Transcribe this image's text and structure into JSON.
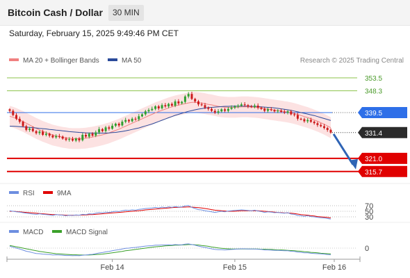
{
  "header": {
    "title": "Bitcoin Cash / Dollar",
    "timeframe": "30 MIN",
    "datetime": "Saturday, February 15, 2025 9:49:46 PM CET"
  },
  "credit": "Research © 2025 Trading Central",
  "colors": {
    "bullish": "#2f9e2f",
    "bearish": "#cc1b1b",
    "ma20": "#f08080",
    "ma50": "#2a4a9a",
    "bollinger_fill": "#fbd3d3",
    "resistance": "#8bc34a",
    "pivot": "#2e6fe8",
    "support": "#e00000",
    "arrow": "#2f64b5",
    "rsi": "#6d8ee0",
    "rsi_ma": "#e00000",
    "macd": "#6d8ee0",
    "macd_signal": "#3aa02a"
  },
  "chart_data": [
    {
      "type": "candlestick",
      "legend": [
        "MA 20 + Bollinger Bands",
        "MA 50"
      ],
      "ylim": [
        312,
        358
      ],
      "levels": [
        {
          "label": "353.5",
          "value": 353.5,
          "kind": "resistance"
        },
        {
          "label": "348.3",
          "value": 348.3,
          "kind": "resistance"
        },
        {
          "label": "339.5",
          "value": 339.5,
          "kind": "pivot"
        },
        {
          "label": "331.4",
          "value": 331.4,
          "kind": "last_price"
        },
        {
          "label": "321.0",
          "value": 321.0,
          "kind": "support"
        },
        {
          "label": "315.7",
          "value": 315.7,
          "kind": "support"
        }
      ],
      "x_ticks": [
        "Feb 14",
        "Feb 15",
        "Feb 16"
      ],
      "close": [
        340.2,
        338.5,
        337.0,
        335.8,
        334.0,
        332.5,
        333.0,
        332.0,
        331.2,
        331.8,
        330.5,
        331.0,
        330.2,
        329.5,
        330.0,
        329.8,
        329.0,
        328.5,
        328.8,
        328.2,
        329.0,
        328.3,
        330.5,
        329.8,
        331.0,
        330.2,
        331.5,
        332.8,
        332.0,
        333.5,
        333.0,
        334.2,
        335.0,
        334.3,
        335.8,
        336.5,
        336.0,
        337.0,
        336.8,
        338.0,
        338.8,
        340.0,
        340.5,
        341.0,
        342.0,
        341.2,
        342.5,
        342.0,
        343.0,
        342.3,
        344.0,
        343.2,
        343.8,
        346.0,
        347.0,
        345.0,
        344.0,
        342.8,
        342.5,
        341.5,
        341.0,
        340.2,
        339.5,
        340.0,
        340.8,
        340.2,
        341.0,
        341.5,
        342.0,
        342.3,
        342.8,
        342.5,
        342.0,
        341.8,
        342.3,
        341.5,
        341.0,
        340.2,
        340.8,
        340.5,
        340.0,
        340.3,
        339.8,
        339.5,
        340.0,
        338.8,
        338.5,
        337.0,
        336.8,
        336.0,
        336.5,
        335.8,
        335.2,
        334.5,
        334.0,
        333.3,
        332.5,
        331.4
      ],
      "ma20": [
        338.0,
        337.6,
        337.1,
        336.5,
        335.9,
        335.2,
        334.5,
        333.8,
        333.1,
        332.5,
        331.9,
        331.4,
        330.9,
        330.4,
        330.1,
        329.8,
        329.5,
        329.3,
        329.1,
        329.0,
        329.0,
        329.0,
        329.1,
        329.2,
        329.4,
        329.6,
        329.9,
        330.2,
        330.5,
        330.9,
        331.3,
        331.8,
        332.3,
        332.8,
        333.4,
        334.0,
        334.6,
        335.2,
        335.8,
        336.4,
        337.0,
        337.6,
        338.2,
        338.8,
        339.4,
        339.9,
        340.4,
        340.9,
        341.4,
        341.8,
        342.2,
        342.5,
        342.8,
        343.1,
        343.4,
        343.6,
        343.6,
        343.5,
        343.3,
        343.1,
        342.8,
        342.6,
        342.3,
        342.0,
        341.8,
        341.7,
        341.6,
        341.6,
        341.6,
        341.7,
        341.8,
        341.8,
        341.8,
        341.7,
        341.6,
        341.5,
        341.3,
        341.1,
        340.9,
        340.7,
        340.5,
        340.3,
        340.1,
        339.9,
        339.7,
        339.4,
        339.1,
        338.7,
        338.3,
        337.9,
        337.5,
        337.0,
        336.5,
        336.0,
        335.4,
        334.8,
        334.1,
        333.4
      ],
      "ma50": [
        334.0,
        334.0,
        333.9,
        333.8,
        333.7,
        333.6,
        333.5,
        333.4,
        333.3,
        333.1,
        333.0,
        332.9,
        332.7,
        332.6,
        332.4,
        332.3,
        332.1,
        332.0,
        331.8,
        331.7,
        331.6,
        331.5,
        331.4,
        331.3,
        331.3,
        331.2,
        331.2,
        331.2,
        331.2,
        331.2,
        331.3,
        331.4,
        331.5,
        331.7,
        331.9,
        332.1,
        332.4,
        332.7,
        333.0,
        333.3,
        333.7,
        334.1,
        334.5,
        334.9,
        335.4,
        335.9,
        336.4,
        336.9,
        337.4,
        337.9,
        338.4,
        338.8,
        339.2,
        339.6,
        340.0,
        340.3,
        340.6,
        340.9,
        341.1,
        341.3,
        341.5,
        341.6,
        341.7,
        341.8,
        341.9,
        342.0,
        342.0,
        342.1,
        342.1,
        342.1,
        342.1,
        342.1,
        342.1,
        342.0,
        342.0,
        341.9,
        341.8,
        341.7,
        341.6,
        341.5,
        341.4,
        341.2,
        341.0,
        340.8,
        340.6,
        340.4,
        340.1,
        339.8,
        339.5,
        339.2,
        338.9,
        338.6,
        338.3,
        337.9,
        337.5,
        337.1,
        336.7,
        336.3
      ]
    },
    {
      "type": "line",
      "legend": [
        "RSI",
        "9MA"
      ],
      "y_ticks": [
        "70",
        "50",
        "30"
      ],
      "rsi": [
        52,
        50,
        48,
        47,
        45,
        43,
        42,
        40,
        39,
        41,
        39,
        38,
        37,
        35,
        38,
        37,
        36,
        34,
        36,
        35,
        37,
        36,
        39,
        38,
        41,
        40,
        43,
        45,
        44,
        47,
        46,
        48,
        50,
        49,
        52,
        54,
        53,
        55,
        54,
        57,
        58,
        60,
        61,
        62,
        64,
        62,
        65,
        63,
        66,
        64,
        67,
        65,
        66,
        69,
        71,
        64,
        60,
        56,
        55,
        52,
        50,
        48,
        46,
        48,
        50,
        48,
        51,
        52,
        53,
        54,
        55,
        54,
        53,
        52,
        54,
        51,
        49,
        46,
        48,
        47,
        45,
        46,
        44,
        43,
        45,
        40,
        39,
        35,
        34,
        32,
        34,
        31,
        30,
        28,
        27,
        26,
        24,
        22
      ],
      "rsi_ma": [
        50,
        50,
        49,
        48,
        47,
        46,
        45,
        44,
        43,
        42,
        41,
        40,
        39,
        38,
        38,
        37,
        37,
        36,
        36,
        36,
        36,
        36,
        37,
        37,
        38,
        38,
        39,
        40,
        41,
        42,
        43,
        44,
        45,
        46,
        47,
        48,
        49,
        50,
        51,
        52,
        53,
        55,
        56,
        57,
        58,
        59,
        60,
        61,
        62,
        63,
        64,
        64,
        65,
        65,
        66,
        65,
        64,
        63,
        62,
        60,
        58,
        56,
        54,
        53,
        52,
        51,
        50,
        50,
        50,
        51,
        52,
        52,
        52,
        52,
        52,
        52,
        51,
        50,
        49,
        48,
        47,
        46,
        45,
        44,
        44,
        43,
        42,
        40,
        38,
        37,
        36,
        34,
        33,
        31,
        30,
        29,
        28,
        26
      ]
    },
    {
      "type": "line",
      "legend": [
        "MACD",
        "MACD Signal"
      ],
      "y_ticks": [
        "0"
      ],
      "macd": [
        0.8,
        0.4,
        0.0,
        -0.4,
        -0.9,
        -1.4,
        -1.7,
        -2.1,
        -2.4,
        -2.5,
        -2.7,
        -2.8,
        -2.9,
        -3.1,
        -3.0,
        -3.1,
        -3.2,
        -3.3,
        -3.3,
        -3.4,
        -3.3,
        -3.4,
        -3.2,
        -3.1,
        -2.9,
        -2.8,
        -2.5,
        -2.2,
        -2.0,
        -1.7,
        -1.5,
        -1.2,
        -0.9,
        -0.7,
        -0.4,
        -0.1,
        0.0,
        0.2,
        0.3,
        0.5,
        0.7,
        0.9,
        1.0,
        1.1,
        1.3,
        1.3,
        1.4,
        1.4,
        1.5,
        1.4,
        1.6,
        1.5,
        1.5,
        1.8,
        1.9,
        1.6,
        1.3,
        0.9,
        0.6,
        0.3,
        0.0,
        -0.3,
        -0.6,
        -0.7,
        -0.7,
        -0.8,
        -0.7,
        -0.6,
        -0.5,
        -0.4,
        -0.3,
        -0.3,
        -0.4,
        -0.4,
        -0.4,
        -0.5,
        -0.6,
        -0.8,
        -0.8,
        -0.9,
        -1.0,
        -1.0,
        -1.1,
        -1.2,
        -1.2,
        -1.4,
        -1.5,
        -1.8,
        -1.9,
        -2.1,
        -2.1,
        -2.3,
        -2.4,
        -2.5,
        -2.6,
        -2.7,
        -2.9,
        -3.0
      ],
      "signal": [
        1.2,
        0.9,
        0.6,
        0.3,
        0.0,
        -0.3,
        -0.6,
        -0.9,
        -1.2,
        -1.5,
        -1.7,
        -1.9,
        -2.1,
        -2.3,
        -2.5,
        -2.6,
        -2.7,
        -2.8,
        -2.9,
        -3.0,
        -3.0,
        -3.1,
        -3.1,
        -3.1,
        -3.1,
        -3.0,
        -2.9,
        -2.8,
        -2.7,
        -2.5,
        -2.3,
        -2.1,
        -1.9,
        -1.7,
        -1.5,
        -1.2,
        -1.0,
        -0.8,
        -0.6,
        -0.4,
        -0.2,
        0.0,
        0.2,
        0.4,
        0.6,
        0.7,
        0.8,
        1.0,
        1.1,
        1.2,
        1.3,
        1.3,
        1.4,
        1.5,
        1.6,
        1.6,
        1.5,
        1.4,
        1.2,
        1.0,
        0.8,
        0.5,
        0.3,
        0.1,
        -0.1,
        -0.2,
        -0.3,
        -0.4,
        -0.4,
        -0.4,
        -0.4,
        -0.4,
        -0.4,
        -0.4,
        -0.4,
        -0.4,
        -0.5,
        -0.5,
        -0.6,
        -0.6,
        -0.7,
        -0.8,
        -0.8,
        -0.9,
        -1.0,
        -1.1,
        -1.2,
        -1.3,
        -1.4,
        -1.6,
        -1.7,
        -1.9,
        -2.0,
        -2.1,
        -2.3,
        -2.4,
        -2.5,
        -2.6
      ]
    }
  ]
}
